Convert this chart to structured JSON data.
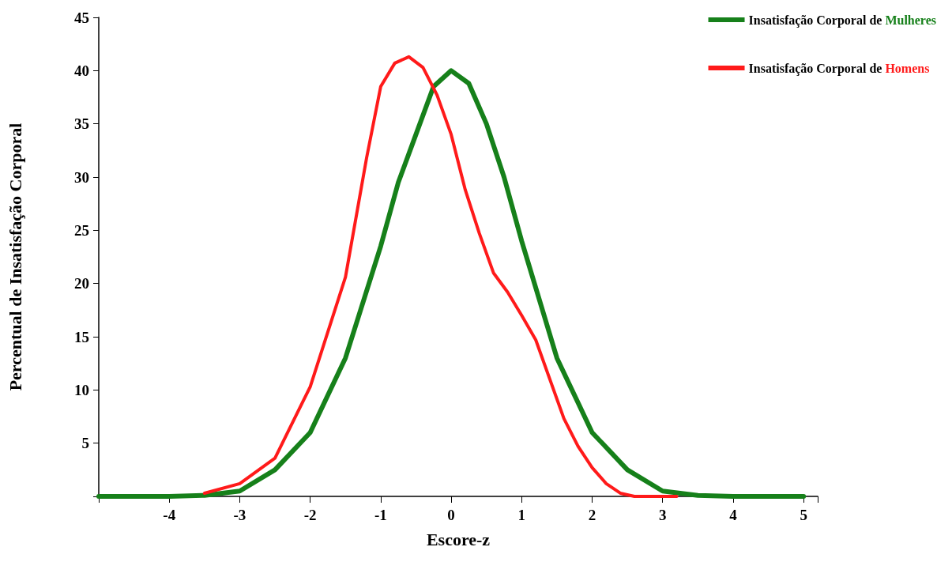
{
  "chart_data": {
    "type": "line",
    "xlabel": "Escore-z",
    "ylabel": "Percentual de Insatisfação Corporal",
    "xlim": [
      -5,
      5.2
    ],
    "ylim": [
      0,
      45
    ],
    "xticks": [
      {
        "value": -5,
        "label": null
      },
      -4,
      -3,
      -2,
      -1,
      0,
      1,
      2,
      3,
      4,
      5
    ],
    "yticks": [
      {
        "value": 0,
        "label": null
      },
      5,
      10,
      15,
      20,
      25,
      30,
      35,
      40,
      45
    ],
    "grid": false,
    "legend": "top right",
    "marker": "none",
    "line_style": "solid",
    "series": [
      {
        "name": "Insatisfação Corporal de Mulheres",
        "color": "#16801a",
        "x": [
          -5,
          -4,
          -3.5,
          -3,
          -2.5,
          -2,
          -1.5,
          -1,
          -0.75,
          -0.5,
          -0.25,
          0,
          0.25,
          0.5,
          0.75,
          1,
          1.5,
          2,
          2.5,
          3,
          3.5,
          4,
          5
        ],
        "values": [
          0,
          0,
          0.1,
          0.5,
          2.5,
          6,
          13,
          23.5,
          29.5,
          34,
          38.5,
          40,
          38.8,
          35,
          30,
          24,
          13,
          6,
          2.5,
          0.5,
          0.1,
          0,
          0
        ]
      },
      {
        "name": "Insatisfação Corporal de Homens",
        "color": "#ff1a1a",
        "x": [
          -3.5,
          -3,
          -2.5,
          -2,
          -1.5,
          -1.2,
          -1,
          -0.8,
          -0.6,
          -0.4,
          -0.2,
          0,
          0.2,
          0.4,
          0.6,
          0.8,
          1,
          1.2,
          1.4,
          1.6,
          1.8,
          2,
          2.2,
          2.4,
          2.6,
          3.2
        ],
        "values": [
          0.3,
          1.2,
          3.6,
          10.3,
          20.6,
          31.8,
          38.5,
          40.7,
          41.3,
          40.3,
          37.7,
          34,
          28.8,
          24.7,
          21,
          19.2,
          17,
          14.7,
          11,
          7.3,
          4.7,
          2.7,
          1.2,
          0.3,
          0,
          0
        ]
      }
    ]
  }
}
